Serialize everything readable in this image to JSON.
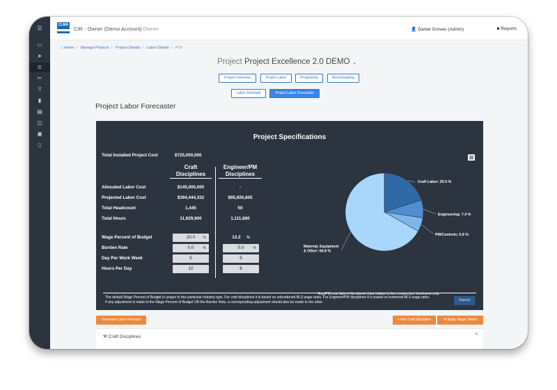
{
  "app": {
    "logo_text": "CLMA",
    "title": "CIR - Owner (Demo Account)",
    "role": "Owner",
    "user": "Daniel Groves (Admin)",
    "reports": "Reports"
  },
  "breadcrumb": [
    "Home",
    "Manage Projects",
    "Project Details",
    "Labor Details",
    "PLF"
  ],
  "project": {
    "label": "Project",
    "name": "Project Excellence 2.0 DEMO",
    "chevron": "⌄"
  },
  "nav": {
    "row1": [
      "Project Overview",
      "Project Labor",
      "Productivity",
      "Benchmarking"
    ],
    "row2": [
      "Labor Schedule",
      "Project Labor Forecaster"
    ]
  },
  "page_title": "Project Labor Forecaster",
  "spec": {
    "title": "Project Specifications",
    "total_cost_label": "Total Installed Project Cost",
    "total_cost_value": "$725,000,000",
    "col_craft_1": "Craft",
    "col_craft_2": "Disciplines",
    "col_eng_1": "Engineer/PM",
    "col_eng_2": "Disciplines",
    "rows": [
      {
        "label": "Allocated Labor Cost",
        "craft": "$145,000,000",
        "eng": "-"
      },
      {
        "label": "Projected Labor Cost",
        "craft": "$394,444,332",
        "eng": "$95,926,605"
      },
      {
        "label": "Total Headcount",
        "craft": "1,445",
        "eng": "50"
      },
      {
        "label": "Total Hours",
        "craft": "11,929,900",
        "eng": "1,111,860"
      }
    ],
    "inputs": [
      {
        "label": "Wage Percent of Budget",
        "craft": "20.0",
        "craft_unit": "%",
        "eng": "13.2",
        "eng_unit": "%",
        "eng_readonly": true
      },
      {
        "label": "Burden Rate",
        "craft": "0.0",
        "craft_unit": "%",
        "eng": "0.0",
        "eng_unit": "%",
        "eng_readonly": false
      },
      {
        "label": "Day Per Work Week",
        "craft": "5",
        "craft_unit": "",
        "eng": "5",
        "eng_unit": "",
        "eng_readonly": false
      },
      {
        "label": "Hours Per Day",
        "craft": "10",
        "craft_unit": "",
        "eng": "8",
        "eng_unit": "",
        "eng_readonly": false
      }
    ],
    "pie_note": "Eng/PM cost data in the above chart relates to the construction timeframe only.",
    "footer_note": "The default Wage Percent of Budget is unique to this particular industry type. For craft disciplines it is based on unburdened BLS wage rates. For Engineer/PM disciplines it is based on burdened BLS wage rates. If any adjustment is made to the Wage Percent of Budget OR the Burden Rate, a corresponding adjustment should also be made to the other.",
    "saved_label": "Saved"
  },
  "chart_data": {
    "type": "pie",
    "slices": [
      {
        "label": "Craft Labor",
        "value": 20.0,
        "color": "#2f6aa6"
      },
      {
        "label": "Engineering",
        "value": 7.4,
        "color": "#4f8ed0"
      },
      {
        "label": "PM/Controls",
        "value": 5.8,
        "color": "#7fb6ea"
      },
      {
        "label": "Material, Equipment & Other",
        "value": 66.8,
        "color": "#a9d6fb"
      }
    ],
    "slice_labels": [
      "Craft Labor: 20.0 %",
      "Engineering: 7.4 %",
      "PM/Controls: 5.8 %",
      "Material, Equipment & Other: 66.8 %"
    ]
  },
  "actions": {
    "generate": "Generate Labor Forecast",
    "add_craft": "+ Add Craft Discipline",
    "apply_wage": "⚒ Apply Wage Tables"
  },
  "craft_panel": {
    "label": "⚒ Craft Disciplines",
    "chevron": "^"
  },
  "colors": {
    "panel_bg": "#2c3440",
    "accent_blue": "#3575c8",
    "orange": "#f0883a"
  }
}
